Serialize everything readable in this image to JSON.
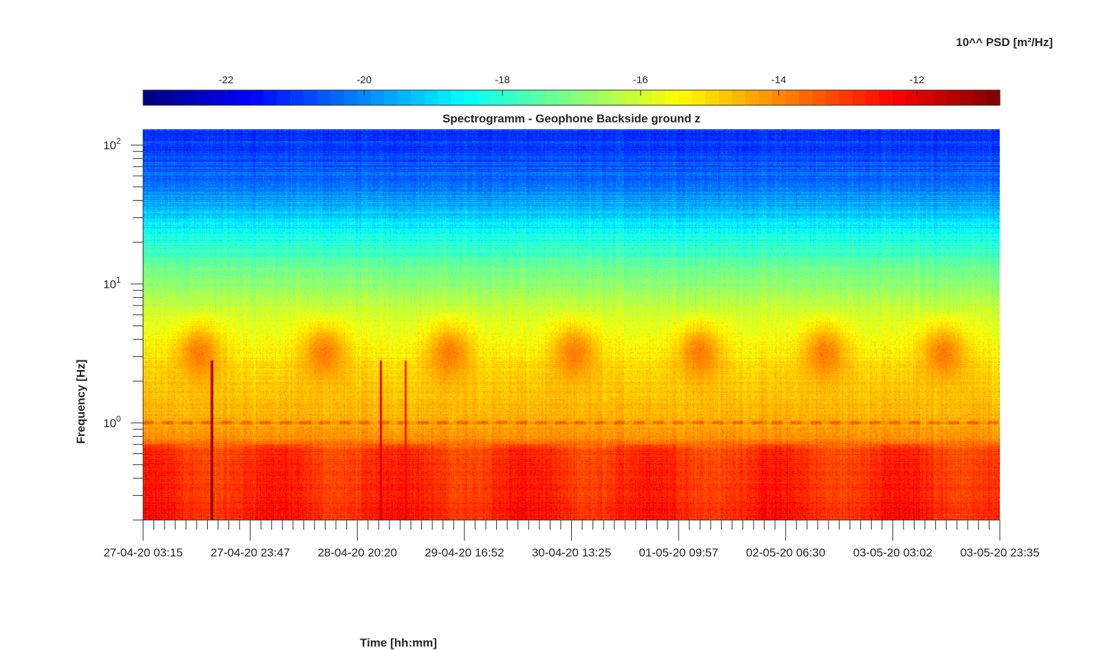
{
  "chart_data": {
    "type": "heatmap",
    "title": "Spectrogramm - Geophone Backside ground z",
    "xlabel": "Time [hh:mm]",
    "ylabel": "Frequency [Hz]",
    "colorbar": {
      "label": "10^^ PSD [m²/Hz]",
      "range": [
        -23.2,
        -10.8
      ],
      "ticks": [
        -22,
        -20,
        -18,
        -16,
        -14,
        -12
      ],
      "tick_labels": [
        "-22",
        "-20",
        "-18",
        "-16",
        "-14",
        "-12"
      ],
      "colormap": "jet",
      "placement": "top"
    },
    "x": {
      "tick_labels": [
        "27-04-20 03:15",
        "27-04-20 23:47",
        "28-04-20 20:20",
        "29-04-20 16:52",
        "30-04-20 13:25",
        "01-05-20 09:57",
        "02-05-20 06:30",
        "03-05-20 03:02",
        "03-05-20 23:35"
      ],
      "minor_ticks_per_major": 9
    },
    "y": {
      "scale": "log",
      "range": [
        0.2,
        130
      ],
      "ticks": [
        {
          "value": 1,
          "base": "10",
          "exp": "0"
        },
        {
          "value": 10,
          "base": "10",
          "exp": "1"
        },
        {
          "value": 100,
          "base": "10",
          "exp": "2"
        }
      ]
    },
    "grid": false,
    "features": {
      "low_freq_band": {
        "freq_range": [
          0.2,
          0.7
        ],
        "level": -12.8
      },
      "hum_line_hz": 1.0,
      "daily_activity_hz": [
        2,
        5
      ],
      "daily_activity_level": -13.8,
      "daily_activity_centers": [
        0.45,
        1.45,
        2.45,
        3.45,
        4.45,
        5.45,
        6.4
      ],
      "event_spikes": [
        {
          "time_days": 0.55,
          "level": -11.0
        },
        {
          "time_days": 1.9,
          "level": -11.8
        },
        {
          "time_days": 2.1,
          "level": -12.2
        }
      ]
    }
  }
}
